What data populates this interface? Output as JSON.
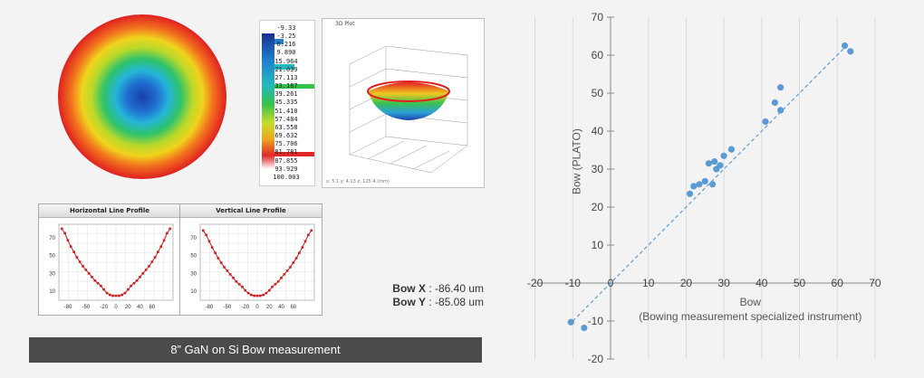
{
  "scale_labels": [
    "-9.33",
    "-3.25",
    "6.216",
    "9.890",
    "15.964",
    "21.039",
    "27.113",
    "33.187",
    "39.261",
    "45.335",
    "51.410",
    "57.484",
    "63.558",
    "69.632",
    "75.706",
    "81.781",
    "87.855",
    "93.929",
    "100.003"
  ],
  "window_3d": {
    "title": "3D Plot",
    "caption": "x: 5.1 y: 4.13 z: 125.4 (mm)"
  },
  "horizontal_profile": {
    "title": "Horizontal Line Profile",
    "y_ticks": [
      "70",
      "50",
      "30",
      "10"
    ],
    "x_ticks": [
      "-80",
      "-50",
      "-20",
      "0",
      "20",
      "40",
      "60"
    ]
  },
  "vertical_profile": {
    "title": "Vertical Line Profile",
    "y_ticks": [
      "70",
      "50",
      "30",
      "10"
    ],
    "x_ticks": [
      "-80",
      "-50",
      "-20",
      "0",
      "20",
      "40",
      "60"
    ]
  },
  "bow_x": {
    "label": "Bow X",
    "value": ": -86.40 um"
  },
  "bow_y": {
    "label": "Bow Y",
    "value": ": -85.08 um"
  },
  "banner": "8” GaN on Si Bow measurement",
  "colors": {
    "point": "#5b9bd5",
    "trend": "#5b9bd5",
    "profile": "#cc1f1f",
    "banner": "#4b4b4b"
  },
  "chart_data": [
    {
      "type": "line",
      "title": "Horizontal Line Profile",
      "x": [
        -90,
        -85,
        -80,
        -75,
        -70,
        -65,
        -60,
        -55,
        -50,
        -45,
        -40,
        -35,
        -30,
        -25,
        -20,
        -15,
        -10,
        -5,
        0,
        5,
        10,
        15,
        20,
        25,
        30,
        35,
        40,
        45,
        50,
        55,
        60,
        65,
        70,
        75,
        80,
        85,
        90
      ],
      "values": [
        80,
        75,
        67,
        60,
        54,
        48,
        43,
        38,
        34,
        30,
        26,
        22,
        19,
        16,
        12,
        8,
        6,
        5,
        5,
        5,
        6,
        8,
        12,
        16,
        19,
        22,
        26,
        30,
        34,
        38,
        43,
        48,
        54,
        60,
        67,
        75,
        80
      ],
      "xticks": [
        "-80",
        "-50",
        "-20",
        "0",
        "20",
        "40",
        "60"
      ],
      "yticks": [
        "70",
        "50",
        "30",
        "10"
      ]
    },
    {
      "type": "line",
      "title": "Vertical Line Profile",
      "x": [
        -90,
        -85,
        -80,
        -75,
        -70,
        -65,
        -60,
        -55,
        -50,
        -45,
        -40,
        -35,
        -30,
        -25,
        -20,
        -15,
        -10,
        -5,
        0,
        5,
        10,
        15,
        20,
        25,
        30,
        35,
        40,
        45,
        50,
        55,
        60,
        65,
        70,
        75,
        80,
        85,
        90
      ],
      "values": [
        78,
        73,
        66,
        59,
        53,
        47,
        42,
        37,
        33,
        29,
        25,
        21,
        18,
        15,
        11,
        8,
        6,
        5,
        5,
        5,
        6,
        8,
        11,
        15,
        18,
        21,
        25,
        29,
        33,
        37,
        42,
        47,
        53,
        59,
        66,
        73,
        78
      ],
      "xticks": [
        "-80",
        "-50",
        "-20",
        "0",
        "20",
        "40",
        "60"
      ],
      "yticks": [
        "70",
        "50",
        "30",
        "10"
      ]
    },
    {
      "type": "scatter",
      "xlabel": "Bow",
      "xlabel_sub": "(Bowing measurement specialized instrument)",
      "ylabel": "Bow (PLATO)",
      "xlim": [
        -20,
        70
      ],
      "ylim": [
        -20,
        70
      ],
      "xticks": [
        -20,
        -10,
        0,
        10,
        20,
        30,
        40,
        50,
        60,
        70
      ],
      "yticks": [
        -20,
        -10,
        0,
        10,
        20,
        30,
        40,
        50,
        60,
        70
      ],
      "trendline": true,
      "grid": "vertical",
      "points": [
        {
          "x": -10.5,
          "y": -10.3
        },
        {
          "x": -7,
          "y": -11.8
        },
        {
          "x": 21,
          "y": 23.5
        },
        {
          "x": 22,
          "y": 25.5
        },
        {
          "x": 23.5,
          "y": 26
        },
        {
          "x": 25,
          "y": 26.8
        },
        {
          "x": 26,
          "y": 31.5
        },
        {
          "x": 27,
          "y": 26
        },
        {
          "x": 27.5,
          "y": 32
        },
        {
          "x": 28,
          "y": 30
        },
        {
          "x": 29,
          "y": 31
        },
        {
          "x": 30,
          "y": 33.5
        },
        {
          "x": 32,
          "y": 35.2
        },
        {
          "x": 41,
          "y": 42.5
        },
        {
          "x": 43.5,
          "y": 47.5
        },
        {
          "x": 45,
          "y": 51.5
        },
        {
          "x": 45,
          "y": 45.5
        },
        {
          "x": 62,
          "y": 62.5
        },
        {
          "x": 63.5,
          "y": 61
        }
      ]
    }
  ]
}
